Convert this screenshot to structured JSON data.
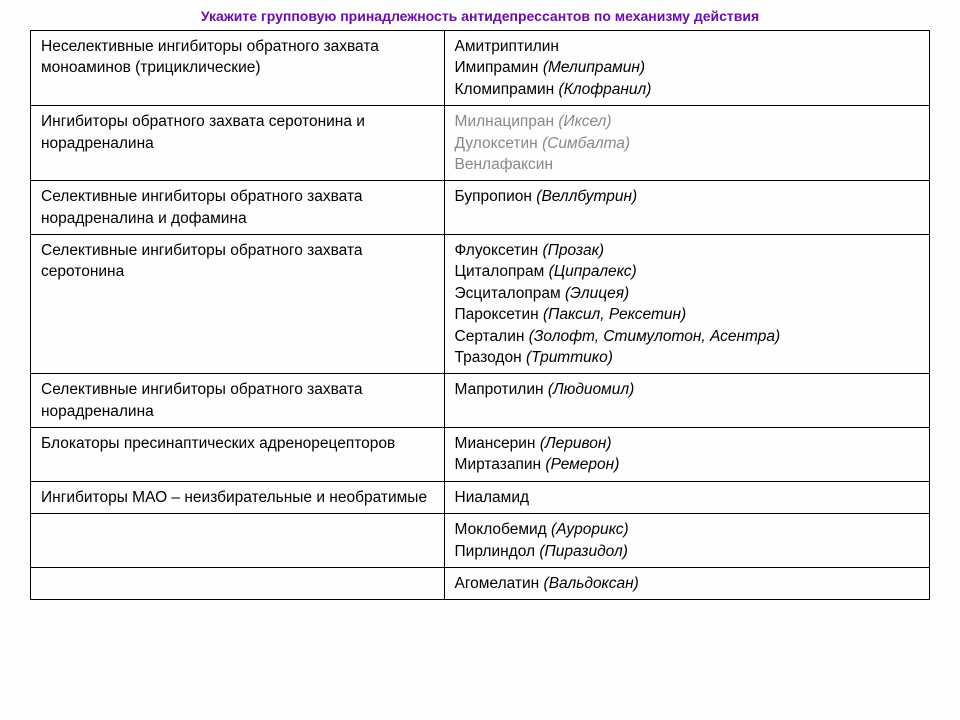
{
  "title": "Укажите групповую принадлежность антидепрессантов по механизму действия",
  "title_color": "#6a0dad",
  "text_color": "#111111",
  "muted_color": "#888888",
  "border_color": "#000000",
  "background_color": "#fefefe",
  "column_widths": [
    "46%",
    "54%"
  ],
  "font_family": "Arial",
  "title_fontsize": 14,
  "cell_fontsize": 15.5,
  "rows": [
    {
      "group": "Неселективные ингибиторы обратного захвата моноаминов (трициклические)",
      "muted": false,
      "drugs": [
        {
          "name": "Амитриптилин",
          "brand": ""
        },
        {
          "name": "Имипрамин",
          "brand": "(Мелипрамин)"
        },
        {
          "name": "Кломипрамин",
          "brand": "(Клофранил)"
        }
      ]
    },
    {
      "group": "Ингибиторы обратного захвата серотонина и норадреналина",
      "muted": true,
      "drugs": [
        {
          "name": "Милнаципран",
          "brand": "(Иксел)"
        },
        {
          "name": "Дулоксетин",
          "brand": "(Симбалта)"
        },
        {
          "name": "Венлафаксин",
          "brand": ""
        }
      ]
    },
    {
      "group": "Селективные ингибиторы обратного захвата норадреналина и дофамина",
      "muted": false,
      "drugs": [
        {
          "name": "Бупропион",
          "brand": "(Веллбутрин)"
        }
      ]
    },
    {
      "group": "Селективные ингибиторы обратного захвата серотонина",
      "muted": false,
      "drugs": [
        {
          "name": "Флуоксетин",
          "brand": "(Прозак)"
        },
        {
          "name": "Циталопрам",
          "brand": "(Ципралекс)"
        },
        {
          "name": "Эсциталопрам",
          "brand": "(Элицея)"
        },
        {
          "name": "Пароксетин",
          "brand": "(Паксил, Рексетин)"
        },
        {
          "name": "Серталин",
          "brand": "(Золофт, Стимулотон, Асентра)"
        },
        {
          "name": "Тразодон",
          "brand": "(Триттико)"
        }
      ]
    },
    {
      "group": "Селективные ингибиторы обратного захвата норадреналина",
      "muted": false,
      "drugs": [
        {
          "name": "Мапротилин",
          "brand": "(Людиомил)"
        }
      ]
    },
    {
      "group": "Блокаторы пресинаптических адренорецепторов",
      "muted": false,
      "drugs": [
        {
          "name": "Миансерин",
          "brand": "(Леривон)"
        },
        {
          "name": "Миртазапин",
          "brand": "(Ремерон)"
        }
      ]
    },
    {
      "group": "Ингибиторы МАО – неизбирательные и необратимые",
      "muted": false,
      "drugs": [
        {
          "name": "Ниаламид",
          "brand": ""
        }
      ]
    },
    {
      "group": "",
      "muted": false,
      "drugs": [
        {
          "name": "Моклобемид",
          "brand": "(Аурорикс)"
        },
        {
          "name": "Пирлиндол",
          "brand": "(Пиразидол)"
        }
      ]
    },
    {
      "group": "",
      "muted": false,
      "drugs": [
        {
          "name": "Агомелатин",
          "brand": "(Вальдоксан)"
        }
      ]
    }
  ]
}
